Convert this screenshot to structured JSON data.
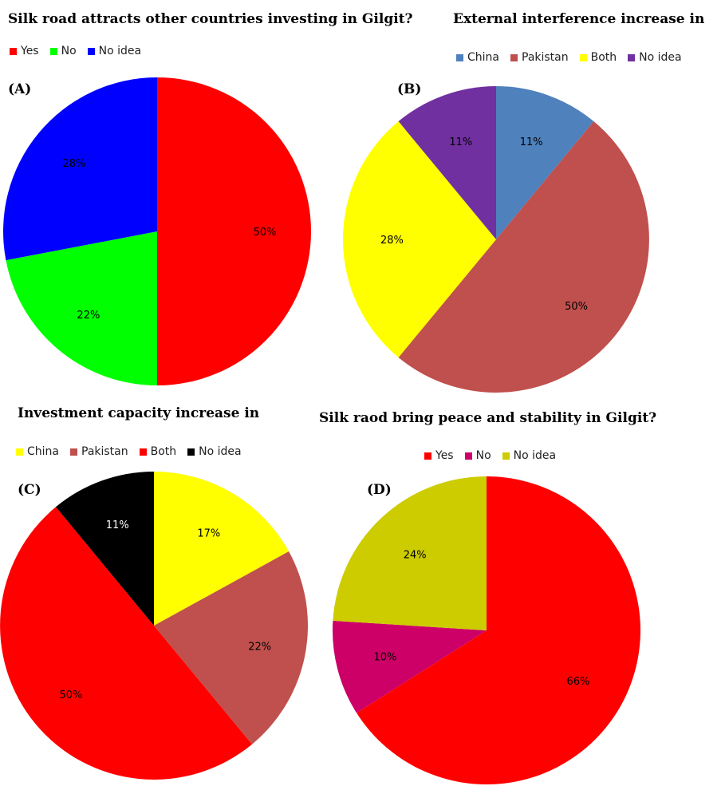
{
  "chart_data": [
    {
      "type": "pie",
      "panel": "(A)",
      "title": "Silk road attracts other countries investing in Gilgit?",
      "legend_position": "top",
      "categories": [
        "Yes",
        "No",
        "No idea"
      ],
      "values": [
        50,
        22,
        28
      ],
      "labels": [
        "50%",
        "22%",
        "28%"
      ],
      "colors": [
        "#ff0000",
        "#00ff00",
        "#0000ff"
      ],
      "label_color": "#000000"
    },
    {
      "type": "pie",
      "panel": "(B)",
      "title": "External interference increase in",
      "legend_position": "top",
      "categories": [
        "China",
        "Pakistan",
        "Both",
        "No idea"
      ],
      "values": [
        11,
        50,
        28,
        11
      ],
      "labels": [
        "11%",
        "50%",
        "28%",
        "11%"
      ],
      "colors": [
        "#4f81bd",
        "#c0504d",
        "#ffff00",
        "#7030a0"
      ],
      "label_color": "#000000"
    },
    {
      "type": "pie",
      "panel": "(C)",
      "title": "Investment capacity increase in",
      "legend_position": "top",
      "categories": [
        "China",
        "Pakistan",
        "Both",
        "No idea"
      ],
      "values": [
        17,
        22,
        50,
        11
      ],
      "labels": [
        "17%",
        "22%",
        "50%",
        "11%"
      ],
      "colors": [
        "#ffff00",
        "#c0504d",
        "#ff0000",
        "#000000"
      ],
      "label_colors": [
        "#000000",
        "#000000",
        "#000000",
        "#ffffff"
      ]
    },
    {
      "type": "pie",
      "panel": "(D)",
      "title": "Silk raod bring peace and stability in Gilgit?",
      "legend_position": "top",
      "categories": [
        "Yes",
        "No",
        "No idea"
      ],
      "values": [
        66,
        10,
        24
      ],
      "labels": [
        "66%",
        "10%",
        "24%"
      ],
      "colors": [
        "#ff0000",
        "#cc0066",
        "#cccc00"
      ],
      "label_color": "#000000"
    }
  ]
}
